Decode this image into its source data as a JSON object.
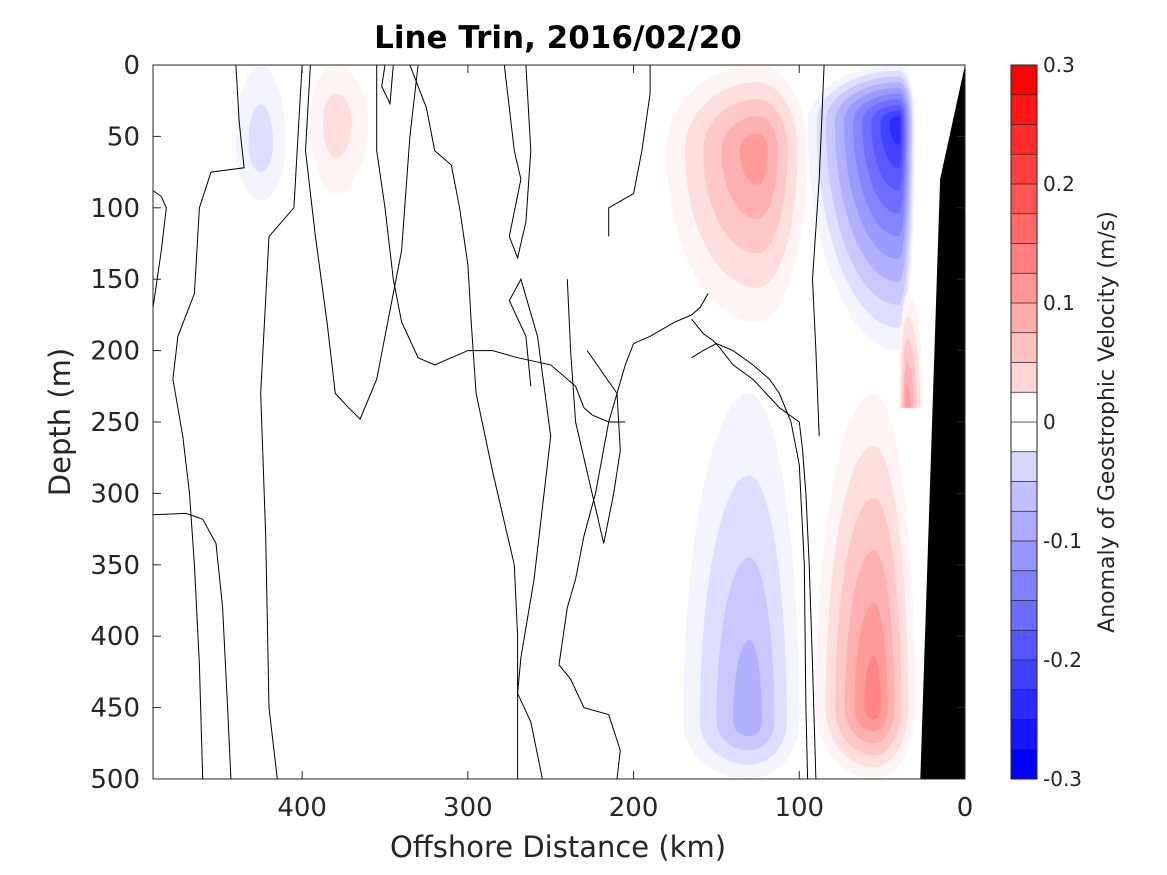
{
  "chart_data": {
    "type": "heatmap",
    "title": "Line Trin, 2016/02/20",
    "xlabel": "Offshore Distance (km)",
    "ylabel": "Depth (m)",
    "xlim": [
      490,
      0
    ],
    "ylim": [
      0,
      500
    ],
    "x_reversed": true,
    "y_reversed": true,
    "xticks": [
      400,
      300,
      200,
      100,
      0
    ],
    "yticks": [
      0,
      50,
      100,
      150,
      200,
      250,
      300,
      350,
      400,
      450,
      500
    ],
    "colorbar": {
      "label": "Anomaly of Geostrophic Velocity (m/s)",
      "range": [
        -0.3,
        0.3
      ],
      "ticks": [
        0.3,
        0.2,
        0.1,
        0,
        -0.1,
        -0.2,
        -0.3
      ],
      "step": 0.025,
      "positive_color": "#ff0000",
      "negative_color": "#0000ff",
      "zero_band": [
        -0.025,
        0.025
      ]
    },
    "zero_contours": [
      {
        "points": [
          [
            490,
            88
          ],
          [
            485,
            92
          ],
          [
            482,
            100
          ],
          [
            485,
            130
          ],
          [
            490,
            170
          ]
        ]
      },
      {
        "points": [
          [
            490,
            315
          ],
          [
            470,
            314
          ],
          [
            460,
            318
          ],
          [
            452,
            335
          ],
          [
            448,
            380
          ],
          [
            445,
            450
          ],
          [
            443,
            500
          ]
        ]
      },
      {
        "points": [
          [
            440,
            0
          ],
          [
            438,
            40
          ],
          [
            435,
            72
          ],
          [
            455,
            75
          ],
          [
            462,
            100
          ],
          [
            465,
            160
          ],
          [
            475,
            190
          ],
          [
            478,
            220
          ],
          [
            472,
            260
          ],
          [
            468,
            300
          ],
          [
            465,
            350
          ],
          [
            462,
            420
          ],
          [
            460,
            500
          ]
        ]
      },
      {
        "points": [
          [
            400,
            0
          ],
          [
            402,
            40
          ],
          [
            405,
            100
          ],
          [
            420,
            120
          ],
          [
            425,
            230
          ],
          [
            422,
            330
          ],
          [
            420,
            450
          ],
          [
            415,
            500
          ]
        ]
      },
      {
        "points": [
          [
            350,
            0
          ],
          [
            352,
            15
          ],
          [
            347,
            27
          ],
          [
            345,
            0
          ]
        ]
      },
      {
        "points": [
          [
            335,
            0
          ],
          [
            325,
            30
          ],
          [
            320,
            60
          ],
          [
            310,
            70
          ],
          [
            305,
            100
          ],
          [
            300,
            140
          ],
          [
            298,
            180
          ],
          [
            295,
            230
          ],
          [
            285,
            285
          ],
          [
            272,
            350
          ],
          [
            270,
            400
          ],
          [
            270,
            500
          ]
        ]
      },
      {
        "points": [
          [
            395,
            0
          ],
          [
            398,
            60
          ],
          [
            392,
            120
          ],
          [
            385,
            180
          ],
          [
            380,
            230
          ],
          [
            372,
            240
          ],
          [
            365,
            248
          ],
          [
            355,
            220
          ],
          [
            340,
            130
          ],
          [
            335,
            50
          ],
          [
            330,
            0
          ]
        ]
      },
      {
        "points": [
          [
            278,
            0
          ],
          [
            272,
            60
          ],
          [
            268,
            80
          ],
          [
            275,
            120
          ],
          [
            270,
            135
          ],
          [
            265,
            110
          ],
          [
            262,
            60
          ],
          [
            265,
            0
          ]
        ]
      },
      {
        "points": [
          [
            262,
            225
          ],
          [
            265,
            190
          ],
          [
            275,
            165
          ],
          [
            268,
            150
          ],
          [
            258,
            190
          ],
          [
            250,
            260
          ],
          [
            255,
            310
          ],
          [
            260,
            360
          ],
          [
            268,
            415
          ],
          [
            270,
            440
          ],
          [
            262,
            460
          ],
          [
            255,
            500
          ]
        ]
      },
      {
        "points": [
          [
            240,
            150
          ],
          [
            238,
            200
          ],
          [
            235,
            250
          ],
          [
            225,
            300
          ],
          [
            218,
            335
          ],
          [
            212,
            300
          ],
          [
            208,
            270
          ],
          [
            210,
            230
          ],
          [
            228,
            200
          ]
        ]
      },
      {
        "points": [
          [
            210,
            500
          ],
          [
            208,
            480
          ],
          [
            215,
            455
          ],
          [
            230,
            450
          ],
          [
            238,
            430
          ],
          [
            245,
            420
          ],
          [
            240,
            380
          ],
          [
            235,
            360
          ],
          [
            230,
            330
          ],
          [
            223,
            300
          ],
          [
            215,
            250
          ],
          [
            205,
            210
          ],
          [
            200,
            195
          ],
          [
            190,
            190
          ],
          [
            175,
            180
          ],
          [
            165,
            175
          ],
          [
            160,
            170
          ],
          [
            155,
            160
          ]
        ]
      },
      {
        "points": [
          [
            215,
            120
          ],
          [
            215,
            100
          ],
          [
            200,
            90
          ],
          [
            195,
            60
          ],
          [
            190,
            20
          ],
          [
            190,
            0
          ]
        ]
      },
      {
        "points": [
          [
            205,
            250
          ],
          [
            215,
            250
          ],
          [
            225,
            245
          ],
          [
            230,
            240
          ],
          [
            235,
            225
          ],
          [
            250,
            210
          ],
          [
            270,
            205
          ],
          [
            285,
            200
          ],
          [
            300,
            200
          ],
          [
            320,
            210
          ],
          [
            330,
            205
          ],
          [
            340,
            180
          ],
          [
            345,
            150
          ],
          [
            350,
            100
          ],
          [
            355,
            60
          ],
          [
            355,
            0
          ]
        ]
      },
      {
        "points": [
          [
            95,
            500
          ],
          [
            96,
            450
          ],
          [
            97,
            350
          ],
          [
            100,
            280
          ],
          [
            105,
            250
          ],
          [
            112,
            230
          ],
          [
            118,
            220
          ],
          [
            128,
            210
          ],
          [
            140,
            200
          ],
          [
            150,
            195
          ],
          [
            158,
            200
          ],
          [
            165,
            205
          ]
        ]
      },
      {
        "points": [
          [
            85,
            0
          ],
          [
            88,
            80
          ],
          [
            92,
            150
          ],
          [
            90,
            200
          ],
          [
            88,
            260
          ]
        ]
      },
      {
        "points": [
          [
            90,
            500
          ],
          [
            92,
            420
          ],
          [
            94,
            350
          ],
          [
            96,
            300
          ],
          [
            98,
            270
          ],
          [
            100,
            250
          ],
          [
            112,
            240
          ],
          [
            120,
            230
          ],
          [
            128,
            220
          ],
          [
            140,
            210
          ],
          [
            148,
            198
          ],
          [
            152,
            193
          ],
          [
            158,
            188
          ],
          [
            165,
            178
          ]
        ]
      }
    ],
    "fields": [
      {
        "label": "deep negative core",
        "center_km": 130,
        "center_depth_m": 460,
        "peak": -0.1,
        "x_span_km": [
          170,
          100
        ],
        "depth_span_m": [
          230,
          500
        ]
      },
      {
        "label": "deep positive core",
        "center_km": 55,
        "center_depth_m": 450,
        "peak": 0.15,
        "x_span_km": [
          90,
          30
        ],
        "depth_span_m": [
          230,
          500
        ]
      },
      {
        "label": "upper positive core",
        "center_km": 125,
        "center_depth_m": 60,
        "peak": 0.125,
        "x_span_km": [
          180,
          95
        ],
        "depth_span_m": [
          0,
          180
        ]
      },
      {
        "label": "upper negative core",
        "center_km": 40,
        "center_depth_m": 40,
        "peak": -0.25,
        "x_span_km": [
          95,
          30
        ],
        "depth_span_m": [
          0,
          200
        ]
      },
      {
        "label": "small negative patch",
        "center_km": 425,
        "center_depth_m": 55,
        "peak": -0.05,
        "x_span_km": [
          440,
          410
        ],
        "depth_span_m": [
          0,
          95
        ]
      },
      {
        "label": "small positive patch",
        "center_km": 380,
        "center_depth_m": 40,
        "peak": 0.05,
        "x_span_km": [
          395,
          360
        ],
        "depth_span_m": [
          0,
          90
        ]
      },
      {
        "label": "shelf positive strip",
        "center_km": 35,
        "center_depth_m": 240,
        "peak": 0.125,
        "x_span_km": [
          40,
          25
        ],
        "depth_span_m": [
          160,
          240
        ]
      }
    ],
    "bottom_polygon": [
      [
        0,
        0
      ],
      [
        0,
        500
      ],
      [
        27,
        500
      ],
      [
        15,
        80
      ]
    ]
  }
}
